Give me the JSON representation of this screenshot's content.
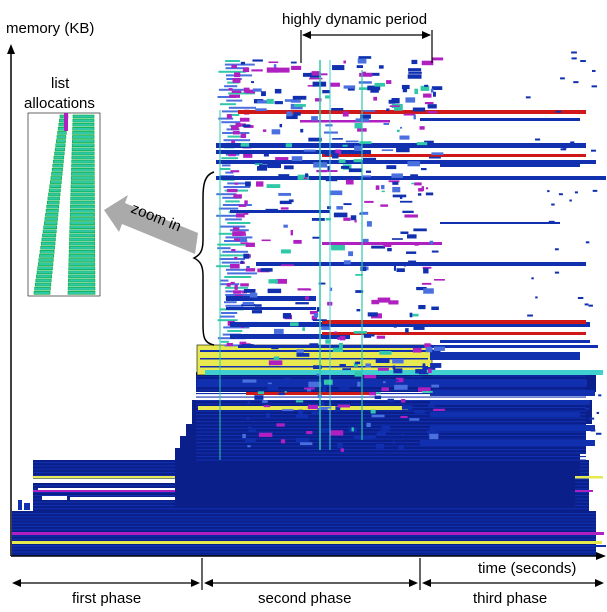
{
  "chart_data": {
    "type": "memory-allocation-timeline",
    "ylabel": "memory (KB)",
    "xlabel": "time (seconds)",
    "annotations": {
      "dynamic_period": "highly dynamic period",
      "inset_title_line1": "list",
      "inset_title_line2": "allocations",
      "zoom": "zoom in"
    },
    "phases": [
      {
        "label": "first phase"
      },
      {
        "label": "second phase"
      },
      {
        "label": "third phase"
      }
    ],
    "colors": {
      "blue": "#1030b0",
      "darkblue": "#0a1f8a",
      "red": "#d01818",
      "magenta": "#b020c0",
      "yellow": "#e8e850",
      "teal": "#30c8a8",
      "cyan": "#40d0d0",
      "lightblue": "#4a70e0"
    }
  }
}
